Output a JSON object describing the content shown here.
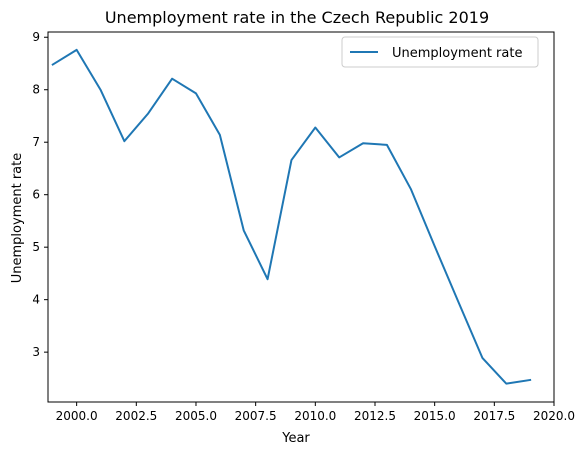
{
  "chart_data": {
    "type": "line",
    "title": "Unemployment rate in the Czech Republic 2019",
    "xlabel": "Year",
    "ylabel": "Unemployment rate",
    "xlim": [
      1998.8,
      2020.0
    ],
    "ylim": [
      2.05,
      9.1
    ],
    "xticks": [
      {
        "value": 2000,
        "label": "2000.0"
      },
      {
        "value": 2002.5,
        "label": "2002.5"
      },
      {
        "value": 2005,
        "label": "2005.0"
      },
      {
        "value": 2007.5,
        "label": "2007.5"
      },
      {
        "value": 2010,
        "label": "2010.0"
      },
      {
        "value": 2012.5,
        "label": "2012.5"
      },
      {
        "value": 2015,
        "label": "2015.0"
      },
      {
        "value": 2017.5,
        "label": "2017.5"
      },
      {
        "value": 2020,
        "label": "2020.0"
      }
    ],
    "yticks": [
      {
        "value": 3,
        "label": "3"
      },
      {
        "value": 4,
        "label": "4"
      },
      {
        "value": 5,
        "label": "5"
      },
      {
        "value": 6,
        "label": "6"
      },
      {
        "value": 7,
        "label": "7"
      },
      {
        "value": 8,
        "label": "8"
      },
      {
        "value": 9,
        "label": "9"
      }
    ],
    "grid": false,
    "legend_position": "top-right",
    "series": [
      {
        "name": "Unemployment rate",
        "color": "#1f77b4",
        "x": [
          1999,
          2000,
          2001,
          2002,
          2003,
          2004,
          2005,
          2006,
          2007,
          2008,
          2009,
          2010,
          2011,
          2012,
          2013,
          2014,
          2015,
          2016,
          2017,
          2018,
          2019
        ],
        "y": [
          8.48,
          8.76,
          8.0,
          7.02,
          7.55,
          8.21,
          7.93,
          7.14,
          5.32,
          4.39,
          6.66,
          7.28,
          6.71,
          6.98,
          6.95,
          6.11,
          5.02,
          3.95,
          2.89,
          2.4,
          2.47
        ]
      }
    ]
  }
}
